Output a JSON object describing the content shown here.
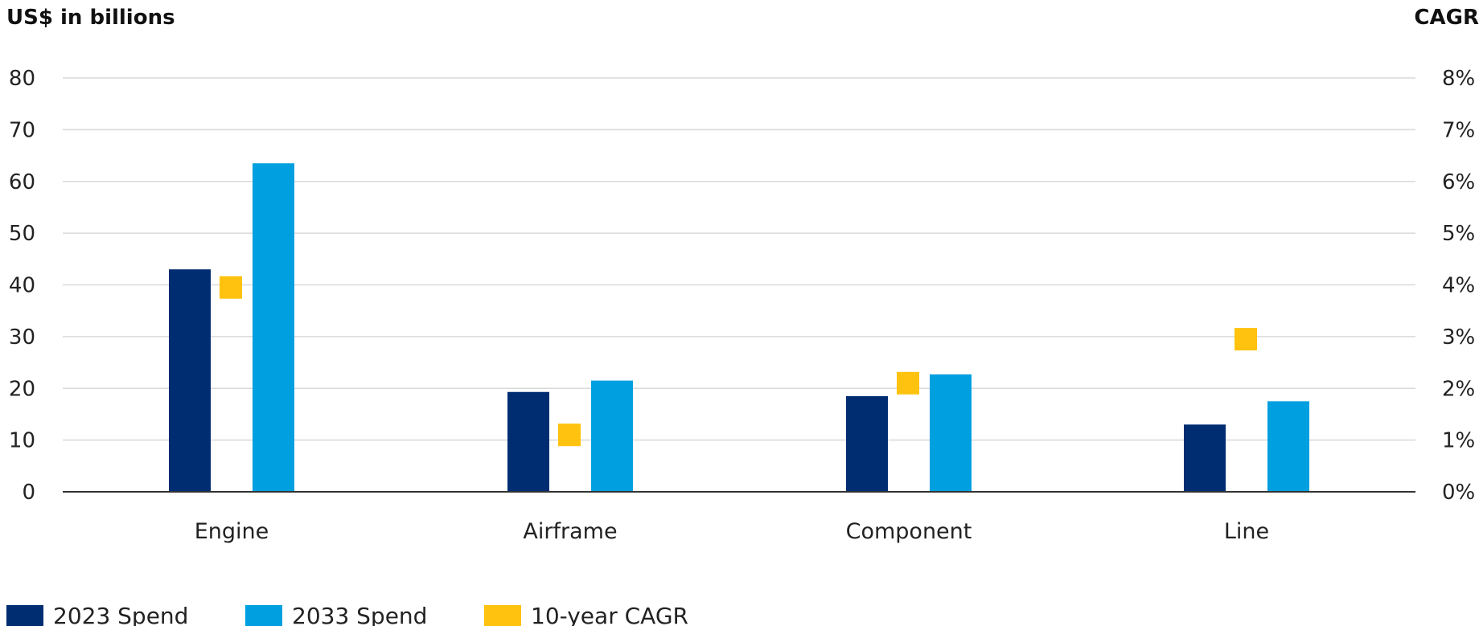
{
  "chart_data": {
    "type": "bar",
    "left_axis_title": "US$ in billions",
    "right_axis_title": "CAGR",
    "categories": [
      "Engine",
      "Airframe",
      "Component",
      "Line"
    ],
    "left_ylim": [
      0,
      80
    ],
    "left_ticks": [
      "0",
      "10",
      "20",
      "30",
      "40",
      "50",
      "60",
      "70",
      "80"
    ],
    "right_ylim": [
      0,
      8
    ],
    "right_ticks": [
      "0%",
      "1%",
      "2%",
      "3%",
      "4%",
      "5%",
      "6%",
      "7%",
      "8%"
    ],
    "grid": true,
    "legend_position": "bottom-left",
    "series": [
      {
        "name": "2023 Spend",
        "type": "bar",
        "axis": "left",
        "color": "#002d72",
        "values": [
          43,
          19.3,
          18.5,
          13
        ]
      },
      {
        "name": "2033 Spend",
        "type": "bar",
        "axis": "left",
        "color": "#00a0e0",
        "values": [
          63.5,
          21.5,
          22.7,
          17.5
        ]
      },
      {
        "name": "10-year CAGR",
        "type": "marker",
        "axis": "right",
        "color": "#ffc20e",
        "values": [
          3.95,
          1.1,
          2.1,
          2.95
        ]
      }
    ]
  }
}
